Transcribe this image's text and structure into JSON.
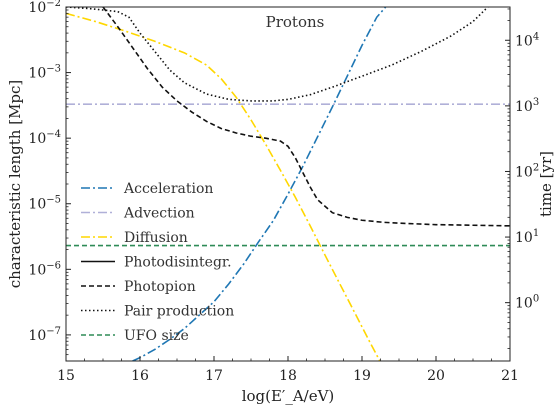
{
  "chart_data": {
    "type": "line",
    "title": "Protons",
    "xlabel": "log(E′_A/eV)",
    "ylabel": "characteristic length [Mpc]",
    "ylabel_right": "time [yr]",
    "xlim": [
      15,
      21
    ],
    "ylim": [
      4e-08,
      0.01
    ],
    "yscale": "log",
    "right_ylim": [
      0.129,
      32150
    ],
    "right_yscale": "log",
    "x_ticks": [
      "15",
      "16",
      "17",
      "18",
      "19",
      "20",
      "21"
    ],
    "y_ticks_left": [
      {
        "value": 1e-07,
        "base": "10",
        "exp": "−7"
      },
      {
        "value": 1e-06,
        "base": "10",
        "exp": "−6"
      },
      {
        "value": 1e-05,
        "base": "10",
        "exp": "−5"
      },
      {
        "value": 0.0001,
        "base": "10",
        "exp": "−4"
      },
      {
        "value": 0.001,
        "base": "10",
        "exp": "−3"
      },
      {
        "value": 0.01,
        "base": "10",
        "exp": "−2"
      }
    ],
    "y_ticks_right": [
      {
        "value": 1,
        "base": "10",
        "exp": "0"
      },
      {
        "value": 10,
        "base": "10",
        "exp": "1"
      },
      {
        "value": 100,
        "base": "10",
        "exp": "2"
      },
      {
        "value": 1000,
        "base": "10",
        "exp": "3"
      },
      {
        "value": 10000,
        "base": "10",
        "exp": "4"
      }
    ],
    "grid": false,
    "legend_position": "lower-left",
    "series": [
      {
        "name": "Acceleration",
        "color": "#1f77b4",
        "dash": "9 3 2 3",
        "x": [
          15.9,
          16.0,
          16.2,
          16.4,
          16.6,
          16.8,
          17.0,
          17.2,
          17.4,
          17.6,
          17.8,
          18.0,
          18.2,
          18.4,
          18.6,
          18.8,
          19.0,
          19.2,
          19.32
        ],
        "y": [
          4e-08,
          4.5e-08,
          6e-08,
          8.5e-08,
          1.25e-07,
          2e-07,
          3.2e-07,
          6e-07,
          1.2e-06,
          2.6e-06,
          5.5e-06,
          1.4e-05,
          3.7e-05,
          0.000105,
          0.0003,
          0.00088,
          0.0026,
          0.007,
          0.01
        ]
      },
      {
        "name": "Advection",
        "color": "#b0b0d8",
        "dash": "9 3 2 3",
        "x": [
          15,
          21
        ],
        "y": [
          0.00033,
          0.00033
        ]
      },
      {
        "name": "Diffusion",
        "color": "#ffd700",
        "dash": "9 3 2 3",
        "x": [
          15.0,
          15.4,
          15.8,
          16.2,
          16.6,
          16.9,
          17.1,
          17.3,
          17.5,
          17.7,
          17.9,
          18.1,
          18.3,
          18.5,
          18.7,
          18.9,
          19.1,
          19.3,
          19.5
        ],
        "y": [
          0.008,
          0.006,
          0.0043,
          0.003,
          0.002,
          0.0013,
          0.0008,
          0.00042,
          0.00019,
          8e-05,
          3.2e-05,
          1.25e-05,
          4.6e-06,
          1.65e-06,
          6e-07,
          2.2e-07,
          8e-08,
          3e-08,
          1.1e-08
        ]
      },
      {
        "name": "Photodisintegr.",
        "color": "#111111",
        "dash": "",
        "x": [],
        "y": []
      },
      {
        "name": "Photopion",
        "color": "#111111",
        "dash": "5 3",
        "x": [
          15.5,
          15.7,
          15.9,
          16.1,
          16.3,
          16.5,
          16.7,
          16.9,
          17.1,
          17.3,
          17.5,
          17.7,
          17.9,
          18.0,
          18.1,
          18.2,
          18.3,
          18.4,
          18.6,
          18.8,
          19.0,
          19.3,
          19.6,
          20.0,
          20.5,
          21.0
        ],
        "y": [
          0.01,
          0.005,
          0.0024,
          0.00115,
          0.0006,
          0.00037,
          0.00025,
          0.00018,
          0.00014,
          0.00012,
          0.000107,
          0.0001,
          9e-05,
          7.5e-05,
          5e-05,
          3e-05,
          1.8e-05,
          1.15e-05,
          7.3e-06,
          6.2e-06,
          5.6e-06,
          5.2e-06,
          5e-06,
          4.8e-06,
          4.7e-06,
          4.6e-06
        ]
      },
      {
        "name": "Pair production",
        "color": "#111111",
        "dash": "1.5 2.5",
        "x": [
          15.0,
          15.3,
          15.5,
          15.7,
          15.85,
          16.0,
          16.2,
          16.4,
          16.6,
          16.9,
          17.2,
          17.5,
          17.8,
          18.0,
          18.3,
          18.6,
          19.0,
          19.4,
          19.8,
          20.2,
          20.5,
          20.7
        ],
        "y": [
          0.01,
          0.0095,
          0.009,
          0.0085,
          0.007,
          0.004,
          0.0021,
          0.0011,
          0.0007,
          0.00047,
          0.00039,
          0.00037,
          0.00037,
          0.00039,
          0.00046,
          0.0006,
          0.00088,
          0.0013,
          0.0021,
          0.0036,
          0.006,
          0.01
        ]
      },
      {
        "name": "UFO size",
        "color": "#2e8b57",
        "dash": "5 3",
        "x": [
          15,
          21
        ],
        "y": [
          2.3e-06,
          2.3e-06
        ]
      }
    ]
  }
}
